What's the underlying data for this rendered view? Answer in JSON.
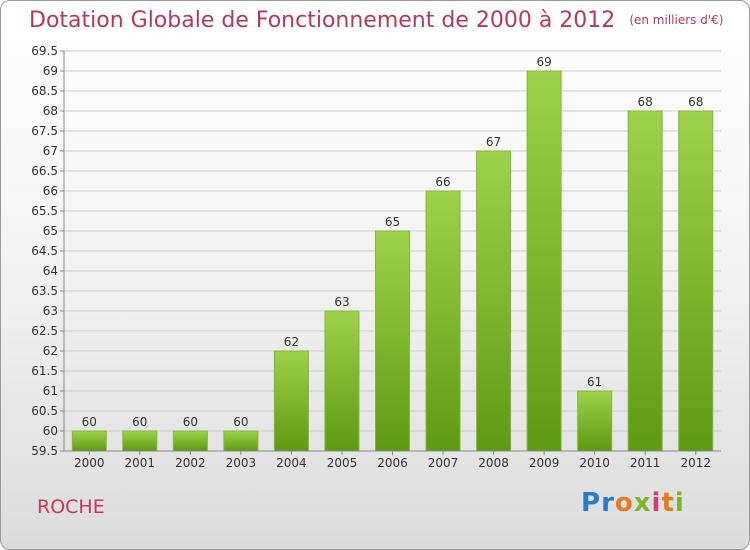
{
  "title": "Dotation Globale de Fonctionnement de 2000 à 2012",
  "unit_label": "(en milliers d'€)",
  "commune": "ROCHE",
  "brand": {
    "letters": [
      "P",
      "r",
      "o",
      "x",
      "i",
      "t",
      "i"
    ],
    "colors": [
      "#2a7bc7",
      "#2a7bc7",
      "#e87a1e",
      "#7ab52a",
      "#d6387a",
      "#e87a1e",
      "#7ab52a"
    ]
  },
  "colors": {
    "title": "#b33a5a",
    "commune": "#c8365f",
    "bar_top": "#9ed24a",
    "bar_bottom": "#5e9a12",
    "grid": "#cccccc"
  },
  "chart_data": {
    "type": "bar",
    "categories": [
      "2000",
      "2001",
      "2002",
      "2003",
      "2004",
      "2005",
      "2006",
      "2007",
      "2008",
      "2009",
      "2010",
      "2011",
      "2012"
    ],
    "values": [
      60,
      60,
      60,
      60,
      62,
      63,
      65,
      66,
      67,
      69,
      61,
      68,
      68
    ],
    "value_labels": [
      "60",
      "60",
      "60",
      "60",
      "62",
      "63",
      "65",
      "66",
      "67",
      "69",
      "61",
      "68",
      "68"
    ],
    "yticks": [
      "59.5",
      "60",
      "60.5",
      "61",
      "61.5",
      "62",
      "62.5",
      "63",
      "63.5",
      "64",
      "64.5",
      "65",
      "65.5",
      "66",
      "66.5",
      "67",
      "67.5",
      "68",
      "68.5",
      "69",
      "69.5"
    ],
    "ylim": [
      59.5,
      69.5
    ],
    "grid": true
  }
}
